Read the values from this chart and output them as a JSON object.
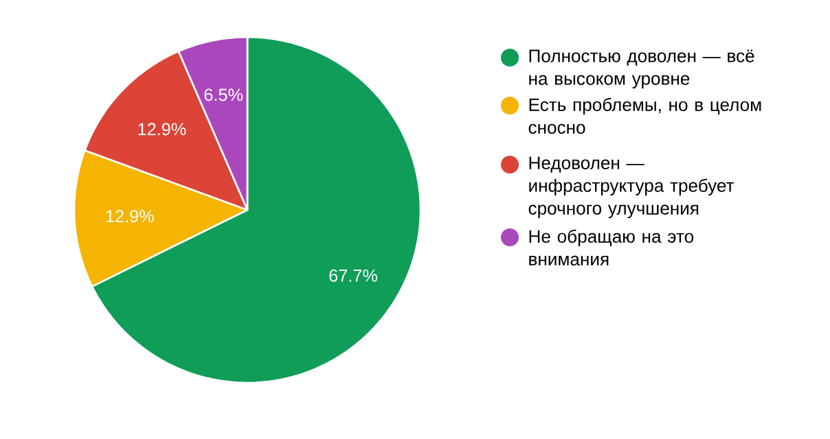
{
  "chart_data": {
    "type": "pie",
    "categories": [
      "Полностью доволен — всё на высоком уровне",
      "Есть проблемы, но в целом сносно",
      "Недоволен — инфраструктура требует срочного улучшения",
      "Не обращаю на это внимания"
    ],
    "values": [
      67.7,
      12.9,
      12.9,
      6.5
    ],
    "colors": [
      "#0f9d58",
      "#f4b400",
      "#db4437",
      "#ab47bc"
    ],
    "value_labels": [
      "67.7%",
      "12.9%",
      "12.9%",
      "6.5%"
    ],
    "legend": "right"
  }
}
